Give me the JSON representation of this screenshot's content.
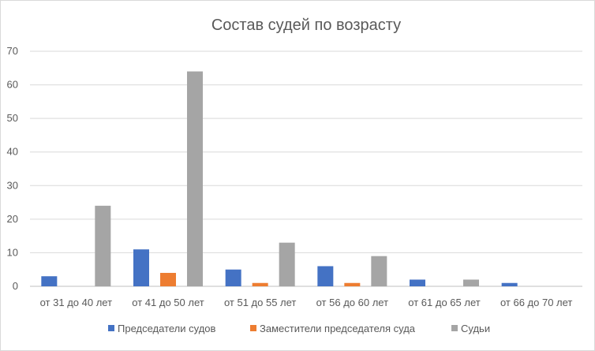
{
  "chart_data": {
    "type": "bar",
    "title": "Состав судей по возрасту",
    "categories": [
      "от 31 до 40 лет",
      "от 41 до 50 лет",
      "от 51 до 55 лет",
      "от 56 до 60 лет",
      "от 61 до 65 лет",
      "от 66 до 70 лет"
    ],
    "series": [
      {
        "name": "Председатели судов",
        "color": "#4472C4",
        "values": [
          3,
          11,
          5,
          6,
          2,
          1
        ]
      },
      {
        "name": "Заместители председателя суда",
        "color": "#ED7D31",
        "values": [
          0,
          4,
          1,
          1,
          0,
          0
        ]
      },
      {
        "name": "Судьи",
        "color": "#A5A5A5",
        "values": [
          24,
          64,
          13,
          9,
          2,
          0
        ]
      }
    ],
    "y_ticks": [
      0,
      10,
      20,
      30,
      40,
      50,
      60,
      70
    ],
    "ylim": [
      0,
      70
    ],
    "xlabel": "",
    "ylabel": "",
    "grid": true,
    "legend_position": "bottom"
  }
}
